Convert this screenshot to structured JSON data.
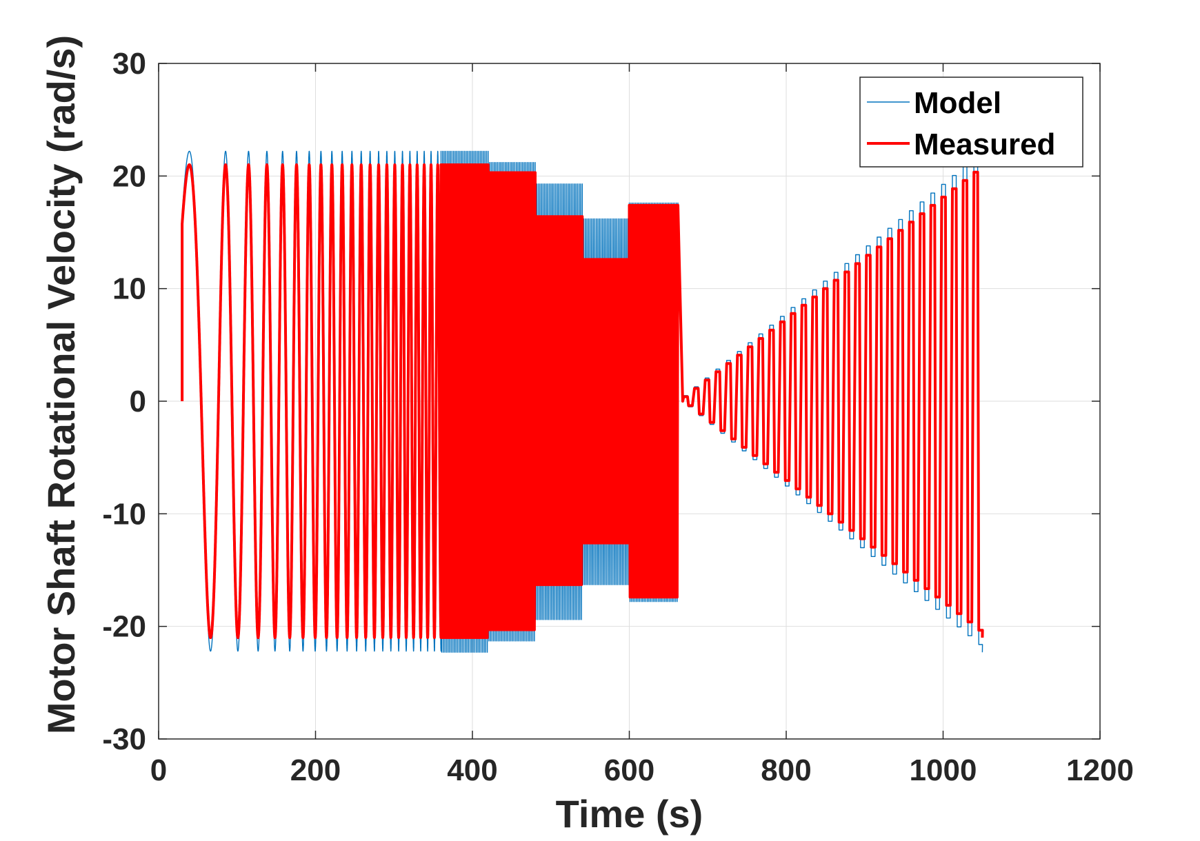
{
  "chart_data": {
    "type": "line",
    "title": "",
    "xlabel": "Time (s)",
    "ylabel": "Motor Shaft Rotational Velocity (rad/s)",
    "xlim": [
      0,
      1200
    ],
    "ylim": [
      -30,
      30
    ],
    "xticks": [
      0,
      200,
      400,
      600,
      800,
      1000,
      1200
    ],
    "yticks": [
      -30,
      -20,
      -10,
      0,
      10,
      20,
      30
    ],
    "xtick_labels": [
      "0",
      "200",
      "400",
      "600",
      "800",
      "1000",
      "1200"
    ],
    "ytick_labels": [
      "-30",
      "-20",
      "-10",
      "0",
      "10",
      "20",
      "30"
    ],
    "grid": true,
    "legend_position": "top-right",
    "series": [
      {
        "name": "Model",
        "color": "#0072BD",
        "style": "thin",
        "segments": [
          {
            "kind": "chirp",
            "t0": 30,
            "t1": 360,
            "f0": 0.011,
            "f1": 0.12,
            "amp": 22.2
          },
          {
            "kind": "band",
            "t0": 360,
            "t1": 420,
            "top": 22.2,
            "bottom": -22.3
          },
          {
            "kind": "band",
            "t0": 420,
            "t1": 480,
            "top": 21.2,
            "bottom": -21.3
          },
          {
            "kind": "band",
            "t0": 480,
            "t1": 540,
            "top": 19.3,
            "bottom": -19.4
          },
          {
            "kind": "band",
            "t0": 540,
            "t1": 600,
            "top": 16.2,
            "bottom": -16.3
          },
          {
            "kind": "band",
            "t0": 600,
            "t1": 662,
            "top": 17.6,
            "bottom": -17.8
          },
          {
            "kind": "ramp",
            "t0": 668,
            "t1": 1050,
            "period": 13.7,
            "amp0": 0.5,
            "amp1": 22.3
          }
        ]
      },
      {
        "name": "Measured",
        "color": "#FF0000",
        "style": "thick",
        "segments": [
          {
            "kind": "chirp",
            "t0": 30,
            "t1": 360,
            "f0": 0.011,
            "f1": 0.12,
            "amp": 21.0
          },
          {
            "kind": "band",
            "t0": 360,
            "t1": 420,
            "top": 21.0,
            "bottom": -21.0
          },
          {
            "kind": "band",
            "t0": 420,
            "t1": 480,
            "top": 20.3,
            "bottom": -20.3
          },
          {
            "kind": "band",
            "t0": 480,
            "t1": 540,
            "top": 16.4,
            "bottom": -16.3
          },
          {
            "kind": "band",
            "t0": 540,
            "t1": 600,
            "top": 12.6,
            "bottom": -12.6
          },
          {
            "kind": "band",
            "t0": 600,
            "t1": 662,
            "top": 17.4,
            "bottom": -17.4
          },
          {
            "kind": "ramp",
            "t0": 668,
            "t1": 1050,
            "period": 13.7,
            "amp0": 0.4,
            "amp1": 21.0
          }
        ]
      }
    ]
  }
}
